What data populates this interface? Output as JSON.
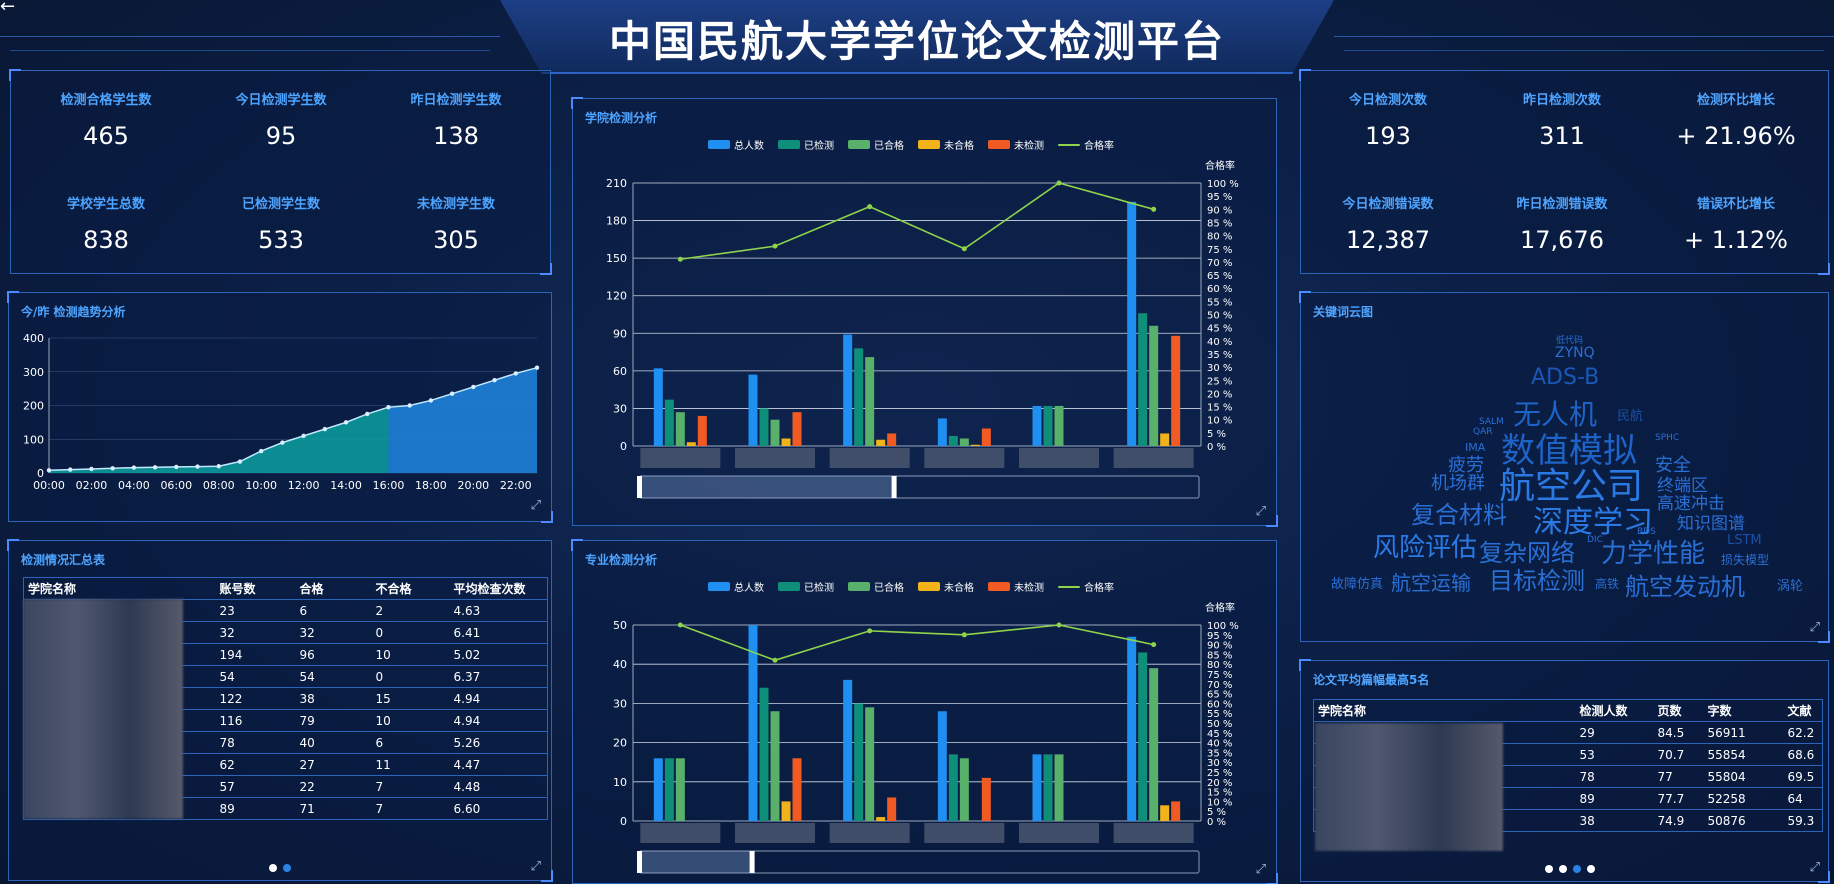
{
  "header": {
    "title": "中国民航大学学位论文检测平台",
    "back_icon": "arrow-left-icon"
  },
  "left_stats": [
    {
      "label": "检测合格学生数",
      "value": "465"
    },
    {
      "label": "今日检测学生数",
      "value": "95"
    },
    {
      "label": "昨日检测学生数",
      "value": "138"
    },
    {
      "label": "学校学生总数",
      "value": "838"
    },
    {
      "label": "已检测学生数",
      "value": "533"
    },
    {
      "label": "未检测学生数",
      "value": "305"
    }
  ],
  "right_stats": [
    {
      "label": "今日检测次数",
      "value": "193"
    },
    {
      "label": "昨日检测次数",
      "value": "311"
    },
    {
      "label": "检测环比增长",
      "value": "+ 21.96%"
    },
    {
      "label": "今日检测错误数",
      "value": "12,387"
    },
    {
      "label": "昨日检测错误数",
      "value": "17,676"
    },
    {
      "label": "错误环比增长",
      "value": "+ 1.12%"
    }
  ],
  "trend": {
    "title": "今/昨 检测趋势分析"
  },
  "summary": {
    "title": "检测情况汇总表",
    "headers": [
      "学院名称",
      "账号数",
      "合格",
      "不合格",
      "平均检查次数"
    ],
    "rows": [
      [
        "23",
        "6",
        "2",
        "4.63"
      ],
      [
        "32",
        "32",
        "0",
        "6.41"
      ],
      [
        "194",
        "96",
        "10",
        "5.02"
      ],
      [
        "54",
        "54",
        "0",
        "6.37"
      ],
      [
        "122",
        "38",
        "15",
        "4.94"
      ],
      [
        "116",
        "79",
        "10",
        "4.94"
      ],
      [
        "78",
        "40",
        "6",
        "5.26"
      ],
      [
        "62",
        "27",
        "11",
        "4.47"
      ],
      [
        "57",
        "22",
        "7",
        "4.48"
      ],
      [
        "89",
        "71",
        "7",
        "6.60"
      ]
    ]
  },
  "college": {
    "title": "学院检测分析",
    "rate_label": "合格率"
  },
  "major": {
    "title": "专业检测分析",
    "rate_label": "合格率"
  },
  "legend": [
    "总人数",
    "已检测",
    "已合格",
    "未合格",
    "未检测",
    "合格率"
  ],
  "colors": {
    "total": "#1f8ff2",
    "tested": "#0f8f7a",
    "passed": "#58b06a",
    "failed": "#f2b31a",
    "untested": "#f25a24",
    "rate": "#8fd44a"
  },
  "cloud": {
    "title": "关键词云图",
    "words": [
      "低代码",
      "ZYNQ",
      "ADS-B",
      "无人机",
      "民航",
      "数值模拟",
      "航空公司",
      "安全",
      "疲劳",
      "机场群",
      "终端区",
      "高速冲击",
      "复合材料",
      "深度学习",
      "知识图谱",
      "风险评估",
      "复杂网络",
      "力学性能",
      "LSTM",
      "目标检测",
      "航空运输",
      "故障仿真",
      "航空发动机",
      "涡轮",
      "损失模型",
      "高铁",
      "SPHC",
      "SALM",
      "QAR",
      "IMA",
      "BDS",
      "DIC"
    ]
  },
  "papers": {
    "title": "论文平均篇幅最高5名",
    "headers": [
      "学院名称",
      "检测人数",
      "页数",
      "字数",
      "文献"
    ],
    "rows": [
      [
        "29",
        "84.5",
        "56911",
        "62.2"
      ],
      [
        "53",
        "70.7",
        "55854",
        "68.6"
      ],
      [
        "78",
        "77",
        "55804",
        "69.5"
      ],
      [
        "89",
        "77.7",
        "52258",
        "64"
      ],
      [
        "38",
        "74.9",
        "50876",
        "59.3"
      ]
    ]
  },
  "chart_data": [
    {
      "type": "area",
      "title": "今/昨 检测趋势分析",
      "x": [
        "00:00",
        "01:00",
        "02:00",
        "03:00",
        "04:00",
        "05:00",
        "06:00",
        "07:00",
        "08:00",
        "09:00",
        "10:00",
        "11:00",
        "12:00",
        "13:00",
        "14:00",
        "15:00",
        "16:00",
        "17:00",
        "18:00",
        "19:00",
        "20:00",
        "21:00",
        "22:00",
        "23:00"
      ],
      "series": [
        {
          "values": [
            8,
            10,
            12,
            14,
            16,
            17,
            18,
            19,
            20,
            34,
            65,
            90,
            110,
            130,
            150,
            175,
            195,
            200,
            215,
            235,
            255,
            275,
            295,
            312
          ]
        }
      ],
      "ylim": [
        0,
        400
      ],
      "yticks": [
        0,
        100,
        200,
        300,
        400
      ],
      "xticks": [
        "00:00",
        "02:00",
        "04:00",
        "06:00",
        "08:00",
        "10:00",
        "12:00",
        "14:00",
        "16:00",
        "18:00",
        "20:00",
        "22:00"
      ]
    },
    {
      "type": "bar",
      "title": "学院检测分析",
      "series": [
        {
          "name": "总人数",
          "values": [
            62,
            57,
            89,
            22,
            32,
            195
          ]
        },
        {
          "name": "已检测",
          "values": [
            37,
            30,
            78,
            8,
            32,
            106
          ]
        },
        {
          "name": "已合格",
          "values": [
            27,
            21,
            71,
            6,
            32,
            96
          ]
        },
        {
          "name": "未合格",
          "values": [
            3,
            6,
            5,
            1,
            0,
            10
          ]
        },
        {
          "name": "未检测",
          "values": [
            24,
            27,
            10,
            14,
            0,
            88
          ]
        },
        {
          "name": "合格率",
          "values": [
            71,
            76,
            91,
            75,
            100,
            90
          ]
        }
      ],
      "ylim": [
        0,
        210
      ],
      "yticks": [
        0,
        30,
        60,
        90,
        120,
        150,
        180,
        210
      ],
      "y2lim": [
        0,
        100
      ]
    },
    {
      "type": "bar",
      "title": "专业检测分析",
      "series": [
        {
          "name": "总人数",
          "values": [
            16,
            50,
            36,
            28,
            17,
            47
          ]
        },
        {
          "name": "已检测",
          "values": [
            16,
            34,
            30,
            17,
            17,
            43
          ]
        },
        {
          "name": "已合格",
          "values": [
            16,
            28,
            29,
            16,
            17,
            39
          ]
        },
        {
          "name": "未合格",
          "values": [
            0,
            5,
            1,
            0,
            0,
            4
          ]
        },
        {
          "name": "未检测",
          "values": [
            0,
            16,
            6,
            11,
            0,
            5
          ]
        },
        {
          "name": "合格率",
          "values": [
            100,
            82,
            97,
            95,
            100,
            90
          ]
        }
      ],
      "ylim": [
        0,
        50
      ],
      "yticks": [
        0,
        10,
        20,
        30,
        40,
        50
      ],
      "y2lim": [
        0,
        100
      ]
    }
  ]
}
